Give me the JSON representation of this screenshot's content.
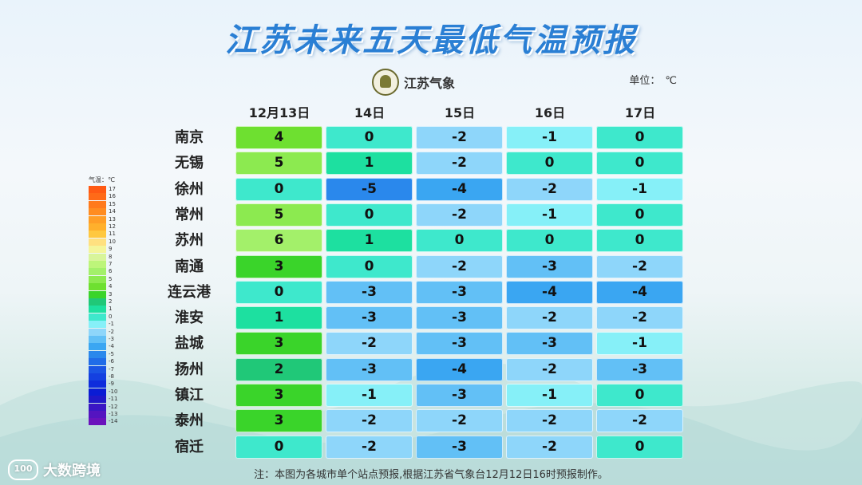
{
  "title": "江苏未来五天最低气温预报",
  "logo_text": "江苏气象",
  "unit_label": "单位：",
  "unit_value": "℃",
  "note": "注：本图为各城市单个站点预报,根据江苏省气象台12月12日16时预报制作。",
  "watermark": "大数跨境",
  "legend": {
    "title": "气温：℃",
    "levels": [
      {
        "label": "17",
        "color": "#ff5a14"
      },
      {
        "label": "16",
        "color": "#ff6a18"
      },
      {
        "label": "15",
        "color": "#ff7a1c"
      },
      {
        "label": "14",
        "color": "#ff8c20"
      },
      {
        "label": "13",
        "color": "#ff9e26"
      },
      {
        "label": "12",
        "color": "#ffb02c"
      },
      {
        "label": "11",
        "color": "#ffc840"
      },
      {
        "label": "10",
        "color": "#ffe080"
      },
      {
        "label": "9",
        "color": "#f4f59a"
      },
      {
        "label": "8",
        "color": "#d8f59a"
      },
      {
        "label": "7",
        "color": "#bdf57a"
      },
      {
        "label": "6",
        "color": "#a3f06a"
      },
      {
        "label": "5",
        "color": "#8cea50"
      },
      {
        "label": "4",
        "color": "#6ee030"
      },
      {
        "label": "3",
        "color": "#3ad42a"
      },
      {
        "label": "2",
        "color": "#20c878"
      },
      {
        "label": "1",
        "color": "#1de0a0"
      },
      {
        "label": "0",
        "color": "#3ee8cc"
      },
      {
        "label": "-1",
        "color": "#86f0f8"
      },
      {
        "label": "-2",
        "color": "#8ed6fa"
      },
      {
        "label": "-3",
        "color": "#62c0f6"
      },
      {
        "label": "-4",
        "color": "#3aa6f2"
      },
      {
        "label": "-5",
        "color": "#2a88ec"
      },
      {
        "label": "-6",
        "color": "#206ce8"
      },
      {
        "label": "-7",
        "color": "#1a54e4"
      },
      {
        "label": "-8",
        "color": "#1440e0"
      },
      {
        "label": "-9",
        "color": "#0e2cdc"
      },
      {
        "label": "-10",
        "color": "#0a1cd4"
      },
      {
        "label": "-11",
        "color": "#2018c8"
      },
      {
        "label": "-12",
        "color": "#3a16c4"
      },
      {
        "label": "-13",
        "color": "#5414c0"
      },
      {
        "label": "-14",
        "color": "#6a12bc"
      }
    ]
  },
  "chart_data": {
    "type": "table",
    "title": "江苏未来五天最低气温预报",
    "columns": [
      "12月13日",
      "14日",
      "15日",
      "16日",
      "17日"
    ],
    "rows": [
      {
        "city": "南京",
        "values": [
          4,
          0,
          -2,
          -1,
          0
        ]
      },
      {
        "city": "无锡",
        "values": [
          5,
          1,
          -2,
          0,
          0
        ]
      },
      {
        "city": "徐州",
        "values": [
          0,
          -5,
          -4,
          -2,
          -1
        ]
      },
      {
        "city": "常州",
        "values": [
          5,
          0,
          -2,
          -1,
          0
        ]
      },
      {
        "city": "苏州",
        "values": [
          6,
          1,
          0,
          0,
          0
        ]
      },
      {
        "city": "南通",
        "values": [
          3,
          0,
          -2,
          -3,
          -2
        ]
      },
      {
        "city": "连云港",
        "values": [
          0,
          -3,
          -3,
          -4,
          -4
        ]
      },
      {
        "city": "淮安",
        "values": [
          1,
          -3,
          -3,
          -2,
          -2
        ]
      },
      {
        "city": "盐城",
        "values": [
          3,
          -2,
          -3,
          -3,
          -1
        ]
      },
      {
        "city": "扬州",
        "values": [
          2,
          -3,
          -4,
          -2,
          -3
        ]
      },
      {
        "city": "镇江",
        "values": [
          3,
          -1,
          -3,
          -1,
          0
        ]
      },
      {
        "city": "泰州",
        "values": [
          3,
          -2,
          -2,
          -2,
          -2
        ]
      },
      {
        "city": "宿迁",
        "values": [
          0,
          -2,
          -3,
          -2,
          0
        ]
      }
    ],
    "unit": "℃"
  }
}
